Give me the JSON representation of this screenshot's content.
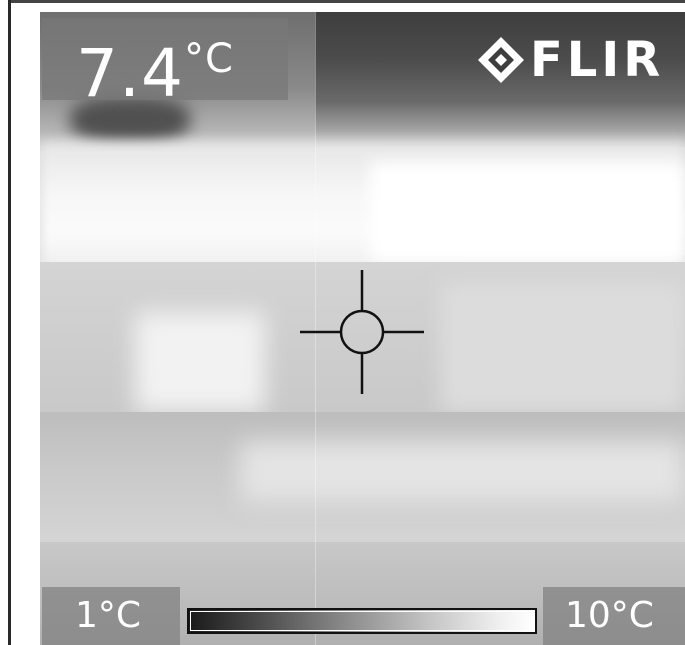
{
  "readout": {
    "value": "7.4",
    "unit": "°C"
  },
  "logo": {
    "text": "FLIR",
    "icon": "flir-diamond-icon"
  },
  "scale": {
    "min": "1°C",
    "max": "10°C",
    "palette": "grayscale"
  },
  "crosshair": {
    "icon": "spot-meter-crosshair-icon"
  }
}
